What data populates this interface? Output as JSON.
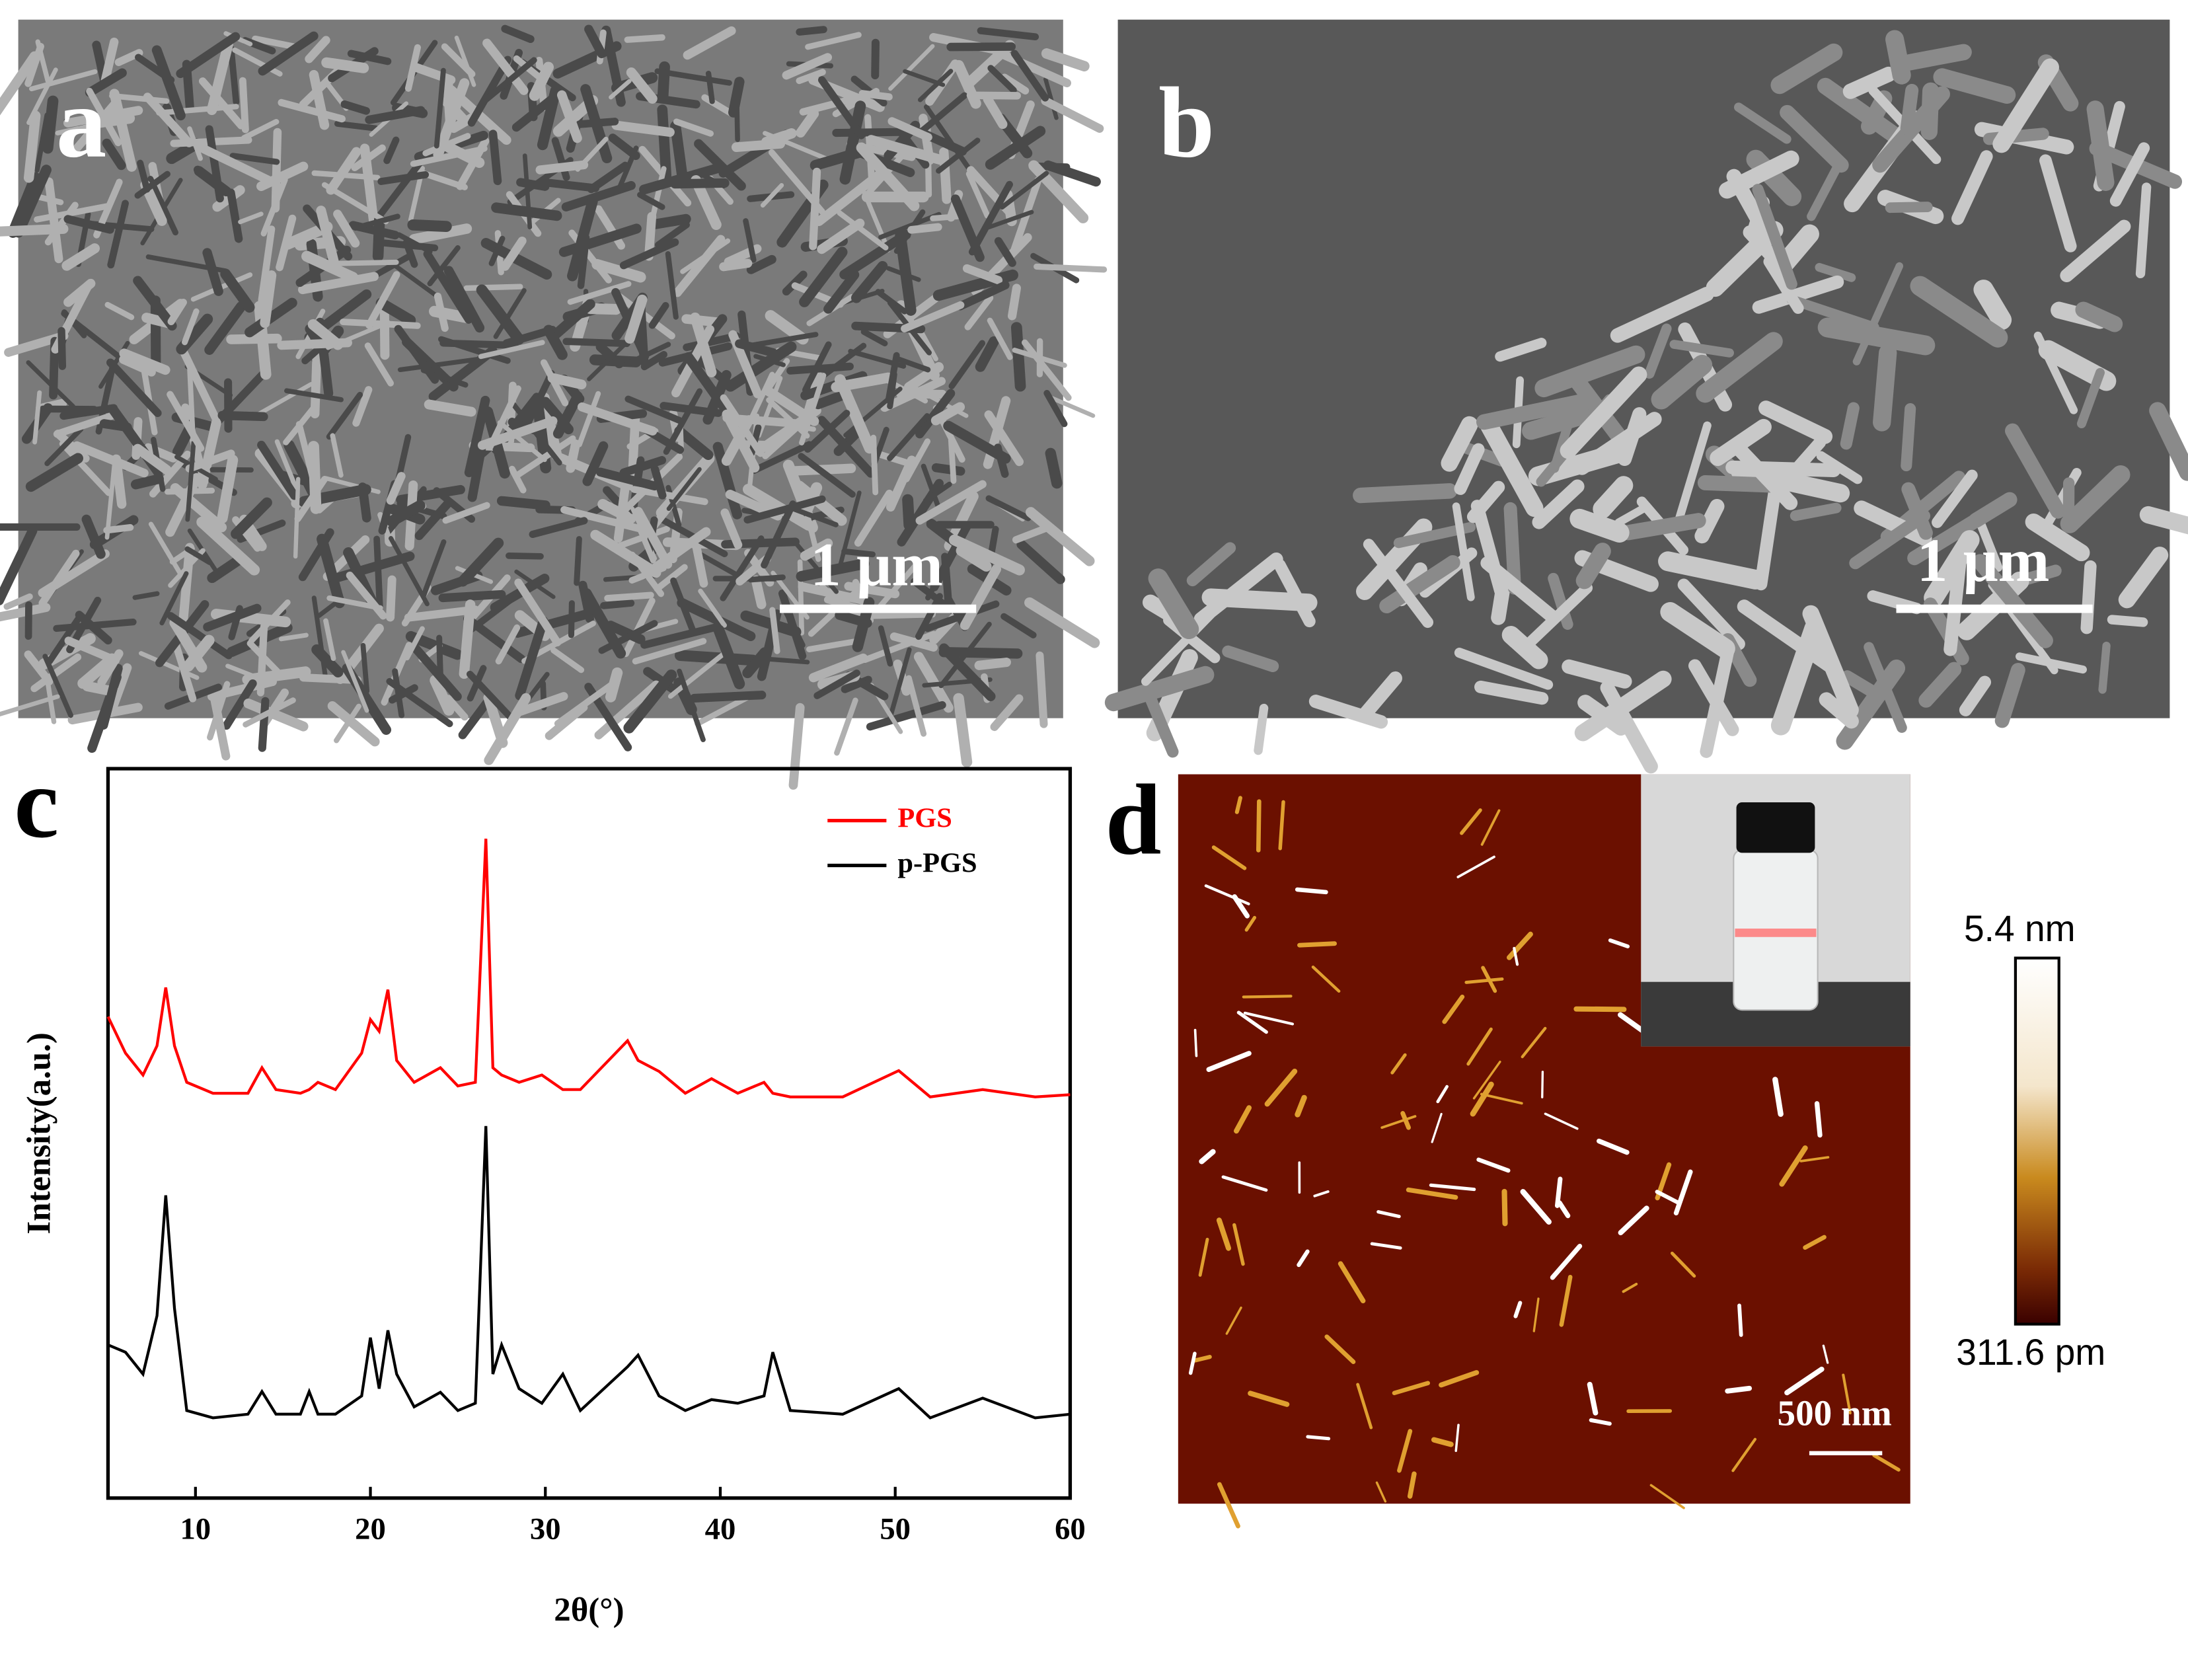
{
  "chart_data": {
    "type": "line",
    "xlabel": "2θ(°)",
    "ylabel": "Intensity(a.u.)",
    "x": [
      5,
      6,
      7,
      7.8,
      8.3,
      8.8,
      9.5,
      11,
      13,
      13.8,
      14.6,
      16,
      16.5,
      17,
      18,
      19.5,
      20,
      20.5,
      21,
      21.5,
      22.5,
      24,
      25,
      26,
      26.6,
      27,
      27.5,
      28.5,
      29.8,
      31,
      32,
      34.7,
      35.3,
      36.5,
      38,
      39.5,
      41,
      42.5,
      43,
      44,
      47,
      50.2,
      52,
      55,
      58,
      60
    ],
    "series": [
      {
        "name": "PGS",
        "color": "#ff0000",
        "values": [
          66,
          61,
          58,
          62,
          70,
          62,
          57,
          55.5,
          55.5,
          59,
          56,
          55.5,
          56,
          57,
          56,
          61,
          65.6,
          64,
          69.7,
          60,
          57,
          59,
          56.5,
          57,
          90.4,
          59,
          58,
          57,
          58,
          56,
          56,
          62.7,
          60,
          58.5,
          55.5,
          57.5,
          55.5,
          57,
          55.5,
          55,
          55,
          58.6,
          55,
          56,
          55,
          55.3
        ]
      },
      {
        "name": "p-PGS",
        "color": "#000000",
        "values": [
          21,
          20,
          17,
          25,
          41.5,
          26,
          12,
          11,
          11.5,
          14.6,
          11.5,
          11.5,
          14.6,
          11.5,
          11.5,
          14,
          22,
          15,
          23,
          17,
          12.5,
          14.5,
          12,
          13,
          51,
          17,
          21,
          15,
          13,
          17,
          12,
          18,
          19.6,
          14,
          12,
          13.5,
          13,
          14,
          20,
          12,
          11.5,
          15,
          11,
          13.7,
          11,
          11.5
        ]
      }
    ],
    "xlim": [
      5,
      60
    ],
    "xticks": [
      10,
      20,
      30,
      40,
      50,
      60
    ],
    "ylim": [
      0,
      100
    ],
    "grid": false,
    "legend": "upper right"
  },
  "panels": {
    "a": {
      "label": "a",
      "scale_bar": "1 μm"
    },
    "b": {
      "label": "b",
      "scale_bar": "1 μm"
    },
    "c": {
      "label": "c"
    },
    "d": {
      "label": "d",
      "scale_bar": "500 nm",
      "colorbar_max": "5.4 nm",
      "colorbar_min": "311.6 pm"
    }
  }
}
